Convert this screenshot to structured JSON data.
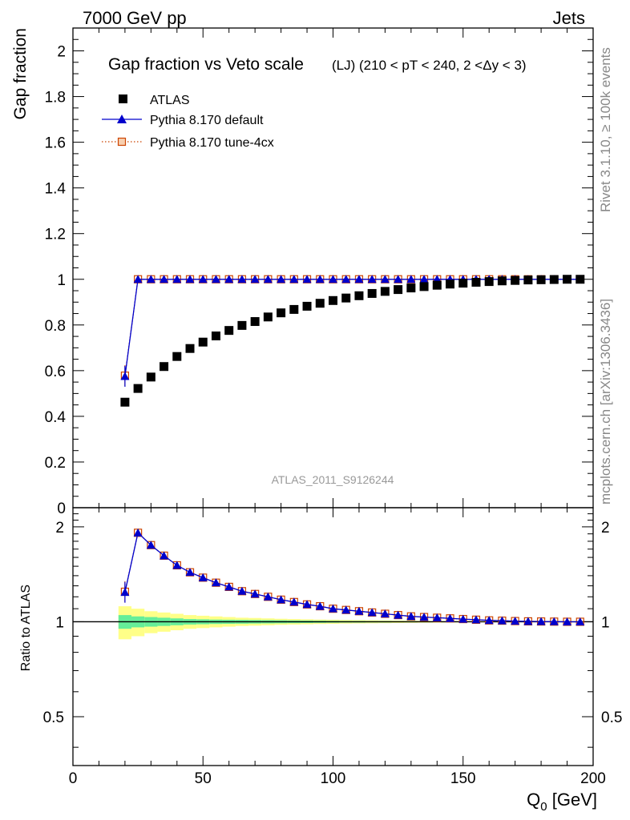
{
  "header": {
    "left": "7000 GeV pp",
    "right": "Jets"
  },
  "side_labels": {
    "rivet": "Rivet 3.1.10, ≥ 100k events",
    "mcplots": "mcplots.cern.ch [arXiv:1306.3436]"
  },
  "chart_data": [
    {
      "type": "scatter",
      "panel": "main",
      "title": "Gap fraction vs Veto scale",
      "subtitle": "(LJ) (210 < pT < 240, 2 <Δy < 3)",
      "watermark": "ATLAS_2011_S9126244",
      "xlabel": "Q",
      "xlabel_sub": "0",
      "xlabel_unit": " [GeV]",
      "ylabel": "Gap fraction",
      "xlim": [
        0,
        200
      ],
      "ylim": [
        0,
        2.1
      ],
      "yticks": [
        0,
        0.2,
        0.4,
        0.6,
        0.8,
        1,
        1.2,
        1.4,
        1.6,
        1.8,
        2
      ],
      "ytick_labels": [
        "0",
        "0.2",
        "0.4",
        "0.6",
        "0.8",
        "1",
        "1.2",
        "1.4",
        "1.6",
        "1.8",
        "2"
      ],
      "x": [
        20,
        25,
        30,
        35,
        40,
        45,
        50,
        55,
        60,
        65,
        70,
        75,
        80,
        85,
        90,
        95,
        100,
        105,
        110,
        115,
        120,
        125,
        130,
        135,
        140,
        145,
        150,
        155,
        160,
        165,
        170,
        175,
        180,
        185,
        190,
        195
      ],
      "series": [
        {
          "name": "ATLAS",
          "style": "data",
          "color": "#000000",
          "values": [
            0.462,
            0.522,
            0.572,
            0.618,
            0.662,
            0.697,
            0.725,
            0.752,
            0.776,
            0.798,
            0.815,
            0.835,
            0.853,
            0.868,
            0.882,
            0.895,
            0.907,
            0.918,
            0.928,
            0.938,
            0.947,
            0.955,
            0.962,
            0.968,
            0.974,
            0.979,
            0.983,
            0.987,
            0.99,
            0.993,
            0.995,
            0.997,
            0.998,
            0.999,
            1.0,
            1.0
          ]
        },
        {
          "name": "Pythia 8.170 default",
          "style": "triangle-line",
          "color": "#0000cc",
          "values": [
            0.575,
            1.0,
            1.0,
            1.0,
            1.0,
            1.0,
            1.0,
            1.0,
            1.0,
            1.0,
            1.0,
            1.0,
            1.0,
            1.0,
            1.0,
            1.0,
            1.0,
            1.0,
            1.0,
            1.0,
            1.0,
            1.0,
            1.0,
            1.0,
            1.0,
            1.0,
            1.0,
            1.0,
            1.0,
            1.0,
            1.0,
            1.0,
            1.0,
            1.0,
            1.0,
            1.0
          ]
        },
        {
          "name": "Pythia 8.170 tune-4cx",
          "style": "square-dotted",
          "color": "#cc4400",
          "values": [
            0.578,
            1.0,
            1.0,
            1.0,
            1.0,
            1.0,
            1.0,
            1.0,
            1.0,
            1.0,
            1.0,
            1.0,
            1.0,
            1.0,
            1.0,
            1.0,
            1.0,
            1.0,
            1.0,
            1.0,
            1.0,
            1.0,
            1.0,
            1.0,
            1.0,
            1.0,
            1.0,
            1.0,
            1.0,
            1.0,
            1.0,
            1.0,
            1.0,
            1.0,
            1.0,
            1.0
          ]
        }
      ]
    },
    {
      "type": "scatter",
      "panel": "ratio",
      "ylabel": "Ratio to ATLAS",
      "xlim": [
        0,
        200
      ],
      "ylim": [
        0.35,
        2.3
      ],
      "yticks": [
        0.5,
        1,
        2
      ],
      "ytick_labels": [
        "0.5",
        "1",
        "2"
      ],
      "xticks": [
        0,
        50,
        100,
        150,
        200
      ],
      "xtick_labels": [
        "0",
        "50",
        "100",
        "150",
        "200"
      ],
      "x": [
        20,
        25,
        30,
        35,
        40,
        45,
        50,
        55,
        60,
        65,
        70,
        75,
        80,
        85,
        90,
        95,
        100,
        105,
        110,
        115,
        120,
        125,
        130,
        135,
        140,
        145,
        150,
        155,
        160,
        165,
        170,
        175,
        180,
        185,
        190,
        195
      ],
      "band_inner": [
        0.05,
        0.04,
        0.035,
        0.03,
        0.025,
        0.02,
        0.018,
        0.016,
        0.015,
        0.014,
        0.013,
        0.012,
        0.011,
        0.01,
        0.009,
        0.008,
        0.007,
        0.006,
        0.006,
        0.005,
        0.005,
        0.004,
        0.004,
        0.003,
        0.003,
        0.003,
        0.002,
        0.002,
        0.002,
        0.002,
        0.001,
        0.001,
        0.001,
        0.001,
        0.001,
        0.001
      ],
      "band_outer": [
        0.12,
        0.1,
        0.08,
        0.07,
        0.06,
        0.05,
        0.045,
        0.04,
        0.035,
        0.03,
        0.028,
        0.025,
        0.022,
        0.02,
        0.018,
        0.016,
        0.015,
        0.013,
        0.012,
        0.011,
        0.01,
        0.009,
        0.008,
        0.007,
        0.006,
        0.005,
        0.005,
        0.004,
        0.004,
        0.003,
        0.003,
        0.003,
        0.002,
        0.002,
        0.002,
        0.002
      ],
      "band_colors": {
        "inner": "#66ee99",
        "outer": "#ffff88"
      },
      "series": [
        {
          "name": "Pythia 8.170 default",
          "style": "triangle-line",
          "color": "#0000cc",
          "values": [
            1.24,
            1.915,
            1.75,
            1.62,
            1.51,
            1.435,
            1.38,
            1.33,
            1.29,
            1.25,
            1.225,
            1.2,
            1.175,
            1.155,
            1.135,
            1.12,
            1.1,
            1.09,
            1.08,
            1.07,
            1.06,
            1.05,
            1.04,
            1.035,
            1.03,
            1.025,
            1.02,
            1.015,
            1.01,
            1.008,
            1.005,
            1.003,
            1.002,
            1.001,
            1.0,
            1.0
          ]
        },
        {
          "name": "Pythia 8.170 tune-4cx",
          "style": "square-dotted",
          "color": "#cc4400",
          "values": [
            1.245,
            1.915,
            1.75,
            1.62,
            1.51,
            1.435,
            1.38,
            1.33,
            1.29,
            1.25,
            1.225,
            1.2,
            1.175,
            1.155,
            1.135,
            1.12,
            1.1,
            1.09,
            1.08,
            1.07,
            1.06,
            1.05,
            1.04,
            1.035,
            1.03,
            1.025,
            1.02,
            1.015,
            1.01,
            1.008,
            1.005,
            1.003,
            1.002,
            1.001,
            1.0,
            1.0
          ]
        }
      ]
    }
  ]
}
